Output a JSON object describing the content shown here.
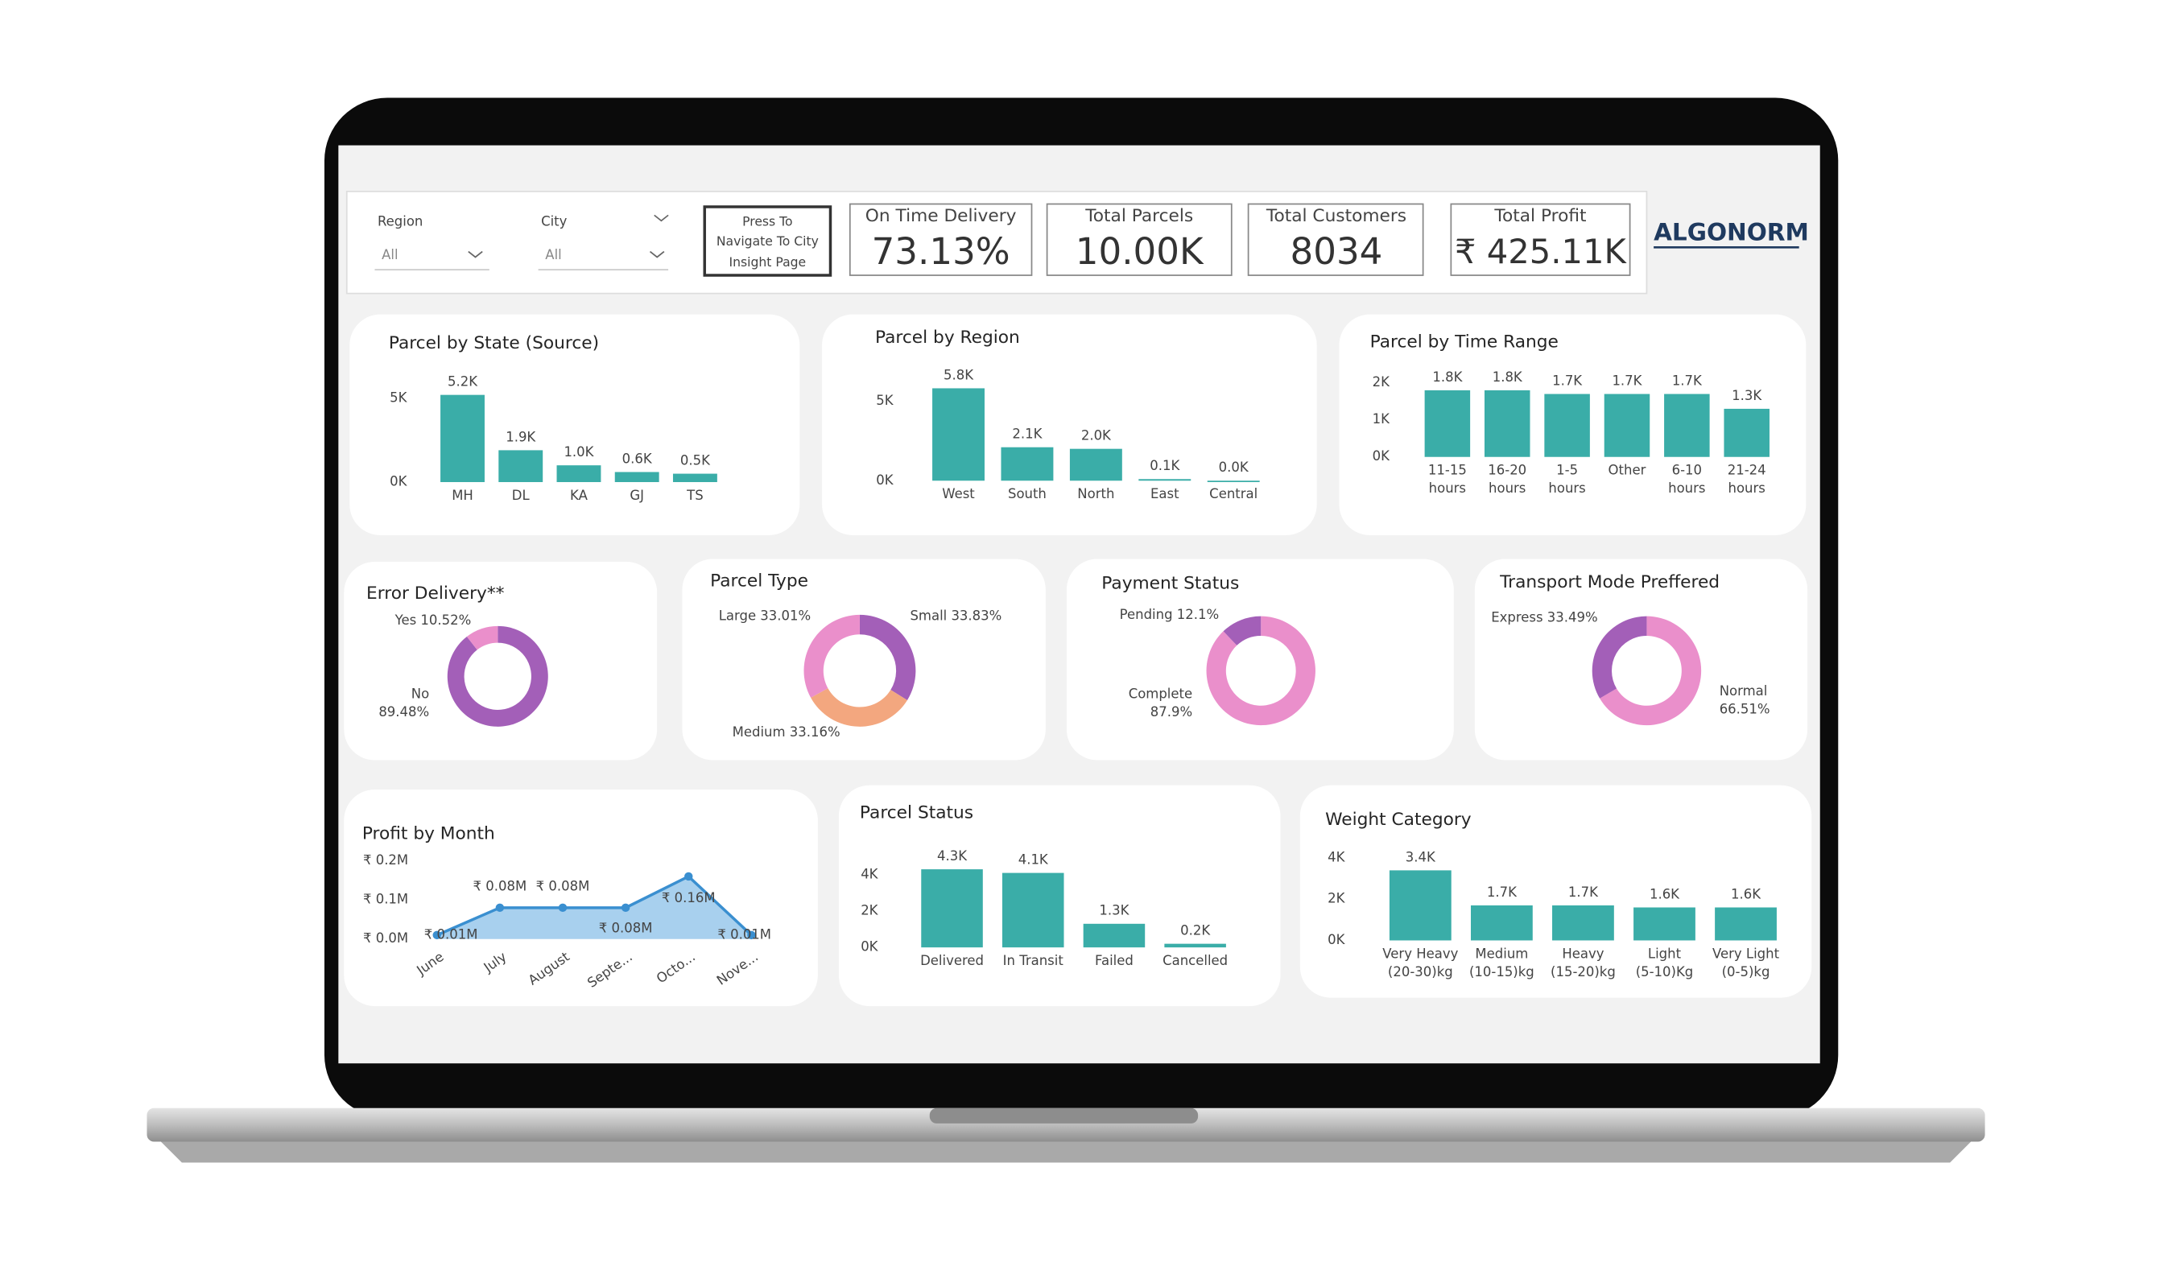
{
  "header": {
    "slicers": [
      {
        "label": "Region",
        "value": "All"
      },
      {
        "label": "City",
        "value": "All"
      }
    ],
    "button": [
      "Press To",
      "Navigate To City",
      "Insight Page"
    ],
    "kpis": [
      {
        "label": "On Time Delivery",
        "value": "73.13%"
      },
      {
        "label": "Total Parcels",
        "value": "10.00K"
      },
      {
        "label": "Total Customers",
        "value": "8034"
      },
      {
        "label": "Total Profit",
        "value": "₹ 425.11K"
      }
    ],
    "logo": "ALGONORM"
  },
  "chart_data": [
    {
      "type": "bar",
      "title": "Parcel by State (Source)",
      "color": "#3aada8",
      "categories": [
        "MH",
        "DL",
        "KA",
        "GJ",
        "TS"
      ],
      "values": [
        5200,
        1900,
        1000,
        600,
        500
      ],
      "value_labels": [
        "5.2K",
        "1.9K",
        "1.0K",
        "0.6K",
        "0.5K"
      ],
      "ylim": [
        0,
        6000
      ],
      "yticks": [
        {
          "value": 0,
          "label": "0K"
        },
        {
          "value": 5000,
          "label": "5K"
        }
      ]
    },
    {
      "type": "bar",
      "title": "Parcel by Region",
      "color": "#3aada8",
      "categories": [
        "West",
        "South",
        "North",
        "East",
        "Central"
      ],
      "values": [
        5800,
        2100,
        2000,
        100,
        0
      ],
      "value_labels": [
        "5.8K",
        "2.1K",
        "2.0K",
        "0.1K",
        "0.0K"
      ],
      "ylim": [
        0,
        6000
      ],
      "yticks": [
        {
          "value": 0,
          "label": "0K"
        },
        {
          "value": 5000,
          "label": "5K"
        }
      ]
    },
    {
      "type": "bar",
      "title": "Parcel by Time Range",
      "color": "#3aada8",
      "categories": [
        [
          "11-15",
          "hours"
        ],
        [
          "16-20",
          "hours"
        ],
        [
          "1-5",
          "hours"
        ],
        [
          "Other"
        ],
        [
          "6-10",
          "hours"
        ],
        [
          "21-24",
          "hours"
        ]
      ],
      "values": [
        1800,
        1800,
        1700,
        1700,
        1700,
        1300
      ],
      "value_labels": [
        "1.8K",
        "1.8K",
        "1.7K",
        "1.7K",
        "1.7K",
        "1.3K"
      ],
      "ylim": [
        0,
        2000
      ],
      "yticks": [
        {
          "value": 0,
          "label": "0K"
        },
        {
          "value": 1000,
          "label": "1K"
        },
        {
          "value": 2000,
          "label": "2K"
        }
      ]
    },
    {
      "type": "donut",
      "title": "Error Delivery**",
      "categories": [
        "No",
        "Yes"
      ],
      "values": [
        89.48,
        10.52
      ],
      "value_labels": [
        "89.48%",
        "10.52%"
      ],
      "colors": [
        "#a35fb8",
        "#ea8fcb"
      ]
    },
    {
      "type": "donut",
      "title": "Parcel Type",
      "categories": [
        "Small",
        "Medium",
        "Large"
      ],
      "values": [
        33.83,
        33.16,
        33.01
      ],
      "value_labels": [
        "33.83%",
        "33.16%",
        "33.01%"
      ],
      "colors": [
        "#a35fb8",
        "#f3a77f",
        "#ea8fcb"
      ]
    },
    {
      "type": "donut",
      "title": "Payment Status",
      "categories": [
        "Complete",
        "Pending"
      ],
      "values": [
        87.9,
        12.1
      ],
      "value_labels": [
        "87.9%",
        "12.1%"
      ],
      "colors": [
        "#ea8fcb",
        "#a35fb8"
      ]
    },
    {
      "type": "donut",
      "title": "Transport Mode Preffered",
      "categories": [
        "Normal",
        "Express"
      ],
      "values": [
        66.51,
        33.49
      ],
      "value_labels": [
        "66.51%",
        "33.49%"
      ],
      "colors": [
        "#ea8fcb",
        "#a35fb8"
      ]
    },
    {
      "type": "area",
      "title": "Profit by Month",
      "color": "#3a8fd0",
      "fill": "#a8d0ee",
      "categories": [
        "June",
        "July",
        "August",
        "Septe...",
        "Octo...",
        "Nove..."
      ],
      "values": [
        10000,
        80000,
        80000,
        80000,
        160000,
        10000
      ],
      "value_labels": [
        "₹ 0.01M",
        "₹ 0.08M",
        "₹ 0.08M",
        "₹ 0.08M",
        "₹ 0.16M",
        "₹ 0.01M"
      ],
      "ylim": [
        0,
        200000
      ],
      "yticks": [
        {
          "value": 0,
          "label": "₹ 0.0M"
        },
        {
          "value": 100000,
          "label": "₹ 0.1M"
        },
        {
          "value": 200000,
          "label": "₹ 0.2M"
        }
      ]
    },
    {
      "type": "bar",
      "title": "Parcel Status",
      "color": "#3aada8",
      "categories": [
        [
          "Delivered"
        ],
        [
          "In Transit"
        ],
        [
          "Failed"
        ],
        [
          "Cancelled"
        ]
      ],
      "values": [
        4300,
        4100,
        1300,
        200
      ],
      "value_labels": [
        "4.3K",
        "4.1K",
        "1.3K",
        "0.2K"
      ],
      "ylim": [
        0,
        5000
      ],
      "yticks": [
        {
          "value": 0,
          "label": "0K"
        },
        {
          "value": 2000,
          "label": "2K"
        },
        {
          "value": 4000,
          "label": "4K"
        }
      ]
    },
    {
      "type": "bar",
      "title": "Weight Category",
      "color": "#3aada8",
      "categories": [
        [
          "Very Heavy",
          "(20-30)kg"
        ],
        [
          "Medium",
          "(10-15)kg"
        ],
        [
          "Heavy",
          "(15-20)kg"
        ],
        [
          "Light",
          "(5-10)Kg"
        ],
        [
          "Very Light",
          "(0-5)kg"
        ]
      ],
      "values": [
        3400,
        1700,
        1700,
        1600,
        1600
      ],
      "value_labels": [
        "3.4K",
        "1.7K",
        "1.7K",
        "1.6K",
        "1.6K"
      ],
      "ylim": [
        0,
        4000
      ],
      "yticks": [
        {
          "value": 0,
          "label": "0K"
        },
        {
          "value": 2000,
          "label": "2K"
        },
        {
          "value": 4000,
          "label": "4K"
        }
      ]
    }
  ]
}
